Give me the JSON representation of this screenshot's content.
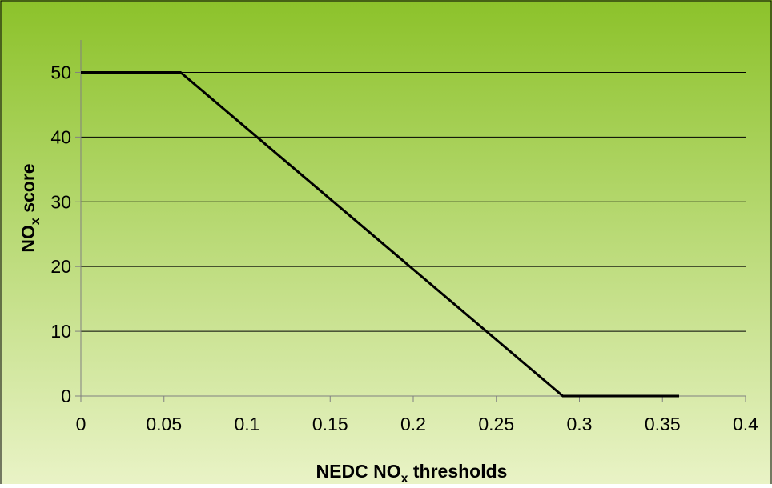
{
  "chart_data": {
    "type": "line",
    "title": "",
    "xlabel": {
      "main": "NEDC NO",
      "sub": "x",
      "rest": " thresholds"
    },
    "ylabel": {
      "main": "NO",
      "sub": "x",
      "rest": " score"
    },
    "xlim": [
      0,
      0.4
    ],
    "ylim": [
      0,
      55
    ],
    "x_ticks": [
      0,
      0.05,
      0.1,
      0.15,
      0.2,
      0.25,
      0.3,
      0.35,
      0.4
    ],
    "x_tick_labels": [
      "0",
      "0.05",
      "0.1",
      "0.15",
      "0.2",
      "0.25",
      "0.3",
      "0.35",
      "0.4"
    ],
    "y_ticks": [
      0,
      10,
      20,
      30,
      40,
      50
    ],
    "y_tick_labels": [
      "0",
      "10",
      "20",
      "30",
      "40",
      "50"
    ],
    "grid": "horizontal",
    "legend": "none",
    "series": [
      {
        "x": [
          0,
          0.06,
          0.29,
          0.36
        ],
        "y": [
          50,
          50,
          0,
          0
        ]
      }
    ],
    "colors": {
      "background_top": "#8cc22a",
      "background_bottom": "#e9f3c6",
      "line": "#000000",
      "gridline": "#000000",
      "axis": "#808080",
      "frame": "#000000"
    }
  }
}
